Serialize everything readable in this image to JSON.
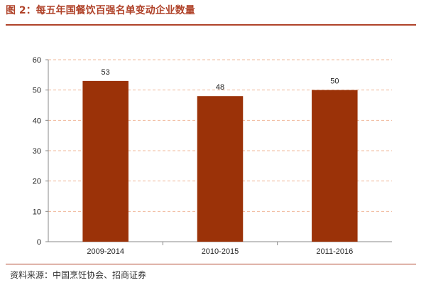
{
  "title": "图 2：每五年国餐饮百强名单变动企业数量",
  "source": "资料来源：中国烹饪协会、招商证券",
  "colors": {
    "bar": "#9b3208",
    "accent": "#b0432a",
    "grid": "#f0b89a"
  },
  "chart_data": {
    "type": "bar",
    "categories": [
      "2009-2014",
      "2010-2015",
      "2011-2016"
    ],
    "values": [
      53,
      48,
      50
    ],
    "data_labels": [
      "53",
      "48",
      "50"
    ],
    "ylim": [
      0,
      60
    ],
    "yticks": [
      "0",
      "10",
      "20",
      "30",
      "40",
      "50",
      "60"
    ],
    "grid": true,
    "legend": "none",
    "xlabel": "",
    "ylabel": ""
  }
}
